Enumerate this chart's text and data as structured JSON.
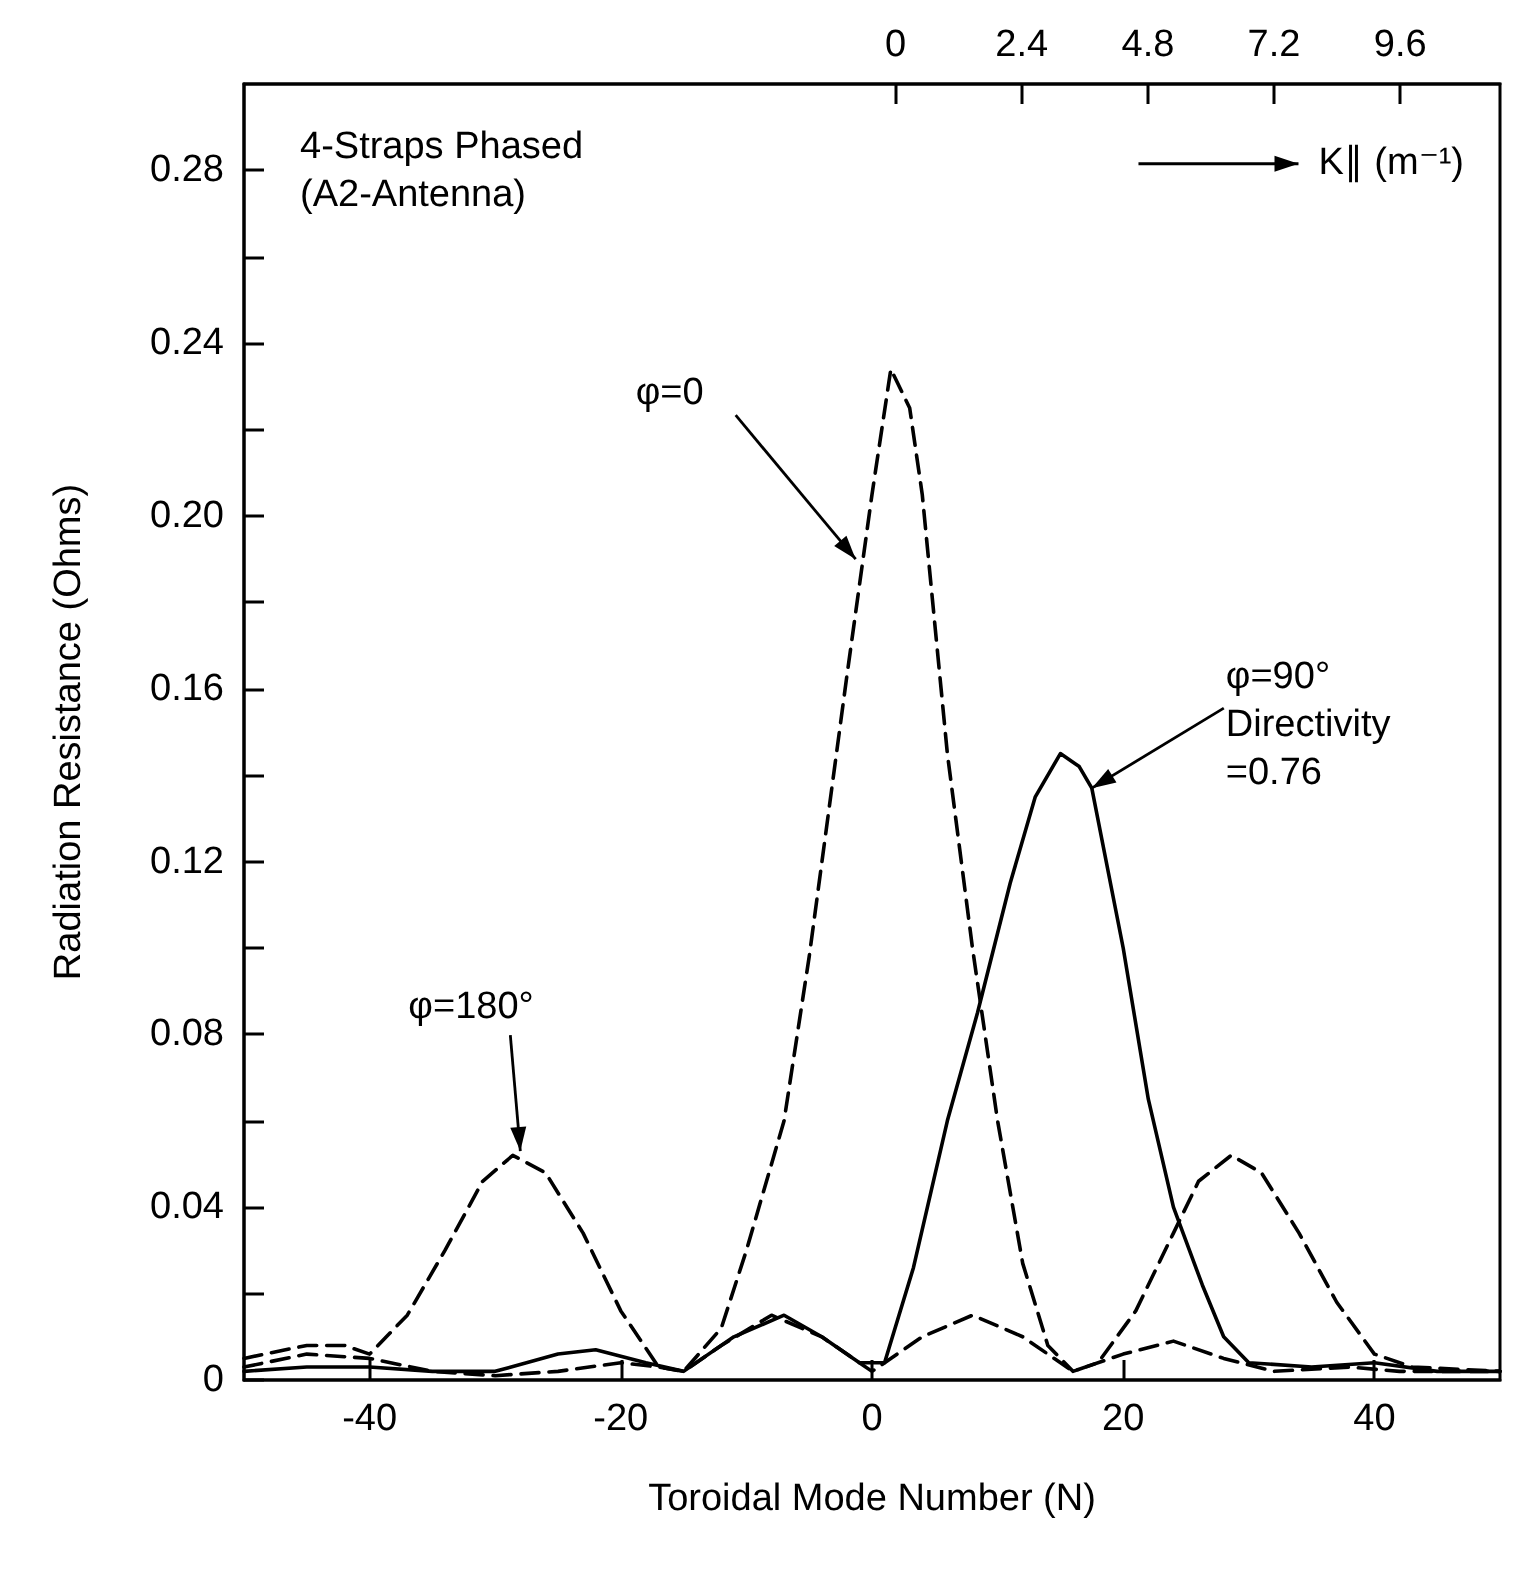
{
  "chart_data": {
    "type": "line",
    "xlabel": "Toroidal Mode Number (N)",
    "ylabel": "Radiation Resistance (Ohms)",
    "x2label": "K∥ (m⁻¹)",
    "xlim": [
      -50,
      50
    ],
    "xticks": [
      -40,
      -20,
      0,
      20,
      40
    ],
    "x2lim": [
      -12.4,
      11.5
    ],
    "x2ticks": [
      0,
      2.4,
      4.8,
      7.2,
      9.6
    ],
    "ylim": [
      0,
      0.3
    ],
    "yticks": [
      0,
      {
        "value": 0.02,
        "label": null
      },
      0.04,
      {
        "value": 0.06,
        "label": null
      },
      0.08,
      {
        "value": 0.1,
        "label": null
      },
      0.12,
      {
        "value": 0.14,
        "label": null
      },
      0.16,
      {
        "value": 0.18,
        "label": null
      },
      {
        "value": 0.2,
        "label": "0.20"
      },
      {
        "value": 0.22,
        "label": null
      },
      0.24,
      {
        "value": 0.26,
        "label": null
      },
      0.28
    ],
    "grid": false,
    "marker": "none",
    "annotations": [
      "4-Straps Phased\n(A2-Antenna)",
      {
        "text": "φ=0",
        "x": -1.3,
        "y": 0.19
      },
      {
        "text": "φ=90°\nDirectivity\n=0.76",
        "x": 17.5,
        "y": 0.137
      },
      {
        "text": "φ=180°",
        "x": -28,
        "y": 0.053
      }
    ],
    "series": [
      {
        "color": "#000000",
        "line_style": "dashed",
        "x": [
          -50,
          -45,
          -40,
          -35,
          -30,
          -25,
          -20,
          -17,
          -15,
          -12,
          -10,
          -7,
          -5,
          -2,
          0,
          1.5,
          3,
          4,
          6,
          8,
          10,
          12,
          14,
          16,
          20,
          24,
          28,
          32,
          38,
          42,
          50
        ],
        "values": [
          0.003,
          0.006,
          0.005,
          0.002,
          0.001,
          0.002,
          0.004,
          0.003,
          0.002,
          0.012,
          0.03,
          0.06,
          0.098,
          0.163,
          0.205,
          0.234,
          0.225,
          0.205,
          0.145,
          0.1,
          0.06,
          0.027,
          0.008,
          0.002,
          0.006,
          0.009,
          0.005,
          0.002,
          0.003,
          0.002,
          0.002
        ]
      },
      {
        "color": "#000000",
        "line_style": "solid",
        "x": [
          -50,
          -45,
          -40,
          -35,
          -30,
          -25,
          -22,
          -18,
          -15,
          -11,
          -7,
          -4,
          -1,
          1,
          3.3,
          6,
          8.4,
          11,
          13,
          15,
          16.5,
          17.5,
          20,
          22,
          24,
          26.3,
          28,
          30,
          35,
          40,
          45,
          50
        ],
        "values": [
          0.002,
          0.003,
          0.003,
          0.002,
          0.002,
          0.006,
          0.007,
          0.004,
          0.002,
          0.01,
          0.015,
          0.01,
          0.004,
          0.004,
          0.026,
          0.06,
          0.085,
          0.115,
          0.135,
          0.145,
          0.142,
          0.137,
          0.1,
          0.065,
          0.04,
          0.022,
          0.01,
          0.004,
          0.003,
          0.004,
          0.002,
          0.002
        ]
      },
      {
        "color": "#000000",
        "line_style": "dashed",
        "x": [
          -50,
          -45,
          -42,
          -40,
          -37,
          -34,
          -31,
          -28.6,
          -26,
          -23,
          -20,
          -17,
          -15,
          -12,
          -8,
          -4,
          0,
          4,
          8,
          12,
          16,
          18,
          21,
          24,
          26,
          28.6,
          31,
          34,
          37,
          40,
          43,
          50
        ],
        "values": [
          0.005,
          0.008,
          0.008,
          0.006,
          0.015,
          0.03,
          0.046,
          0.052,
          0.048,
          0.034,
          0.016,
          0.003,
          0.002,
          0.008,
          0.015,
          0.01,
          0.002,
          0.01,
          0.015,
          0.01,
          0.002,
          0.004,
          0.016,
          0.034,
          0.046,
          0.052,
          0.048,
          0.034,
          0.018,
          0.006,
          0.003,
          0.002
        ]
      }
    ]
  }
}
